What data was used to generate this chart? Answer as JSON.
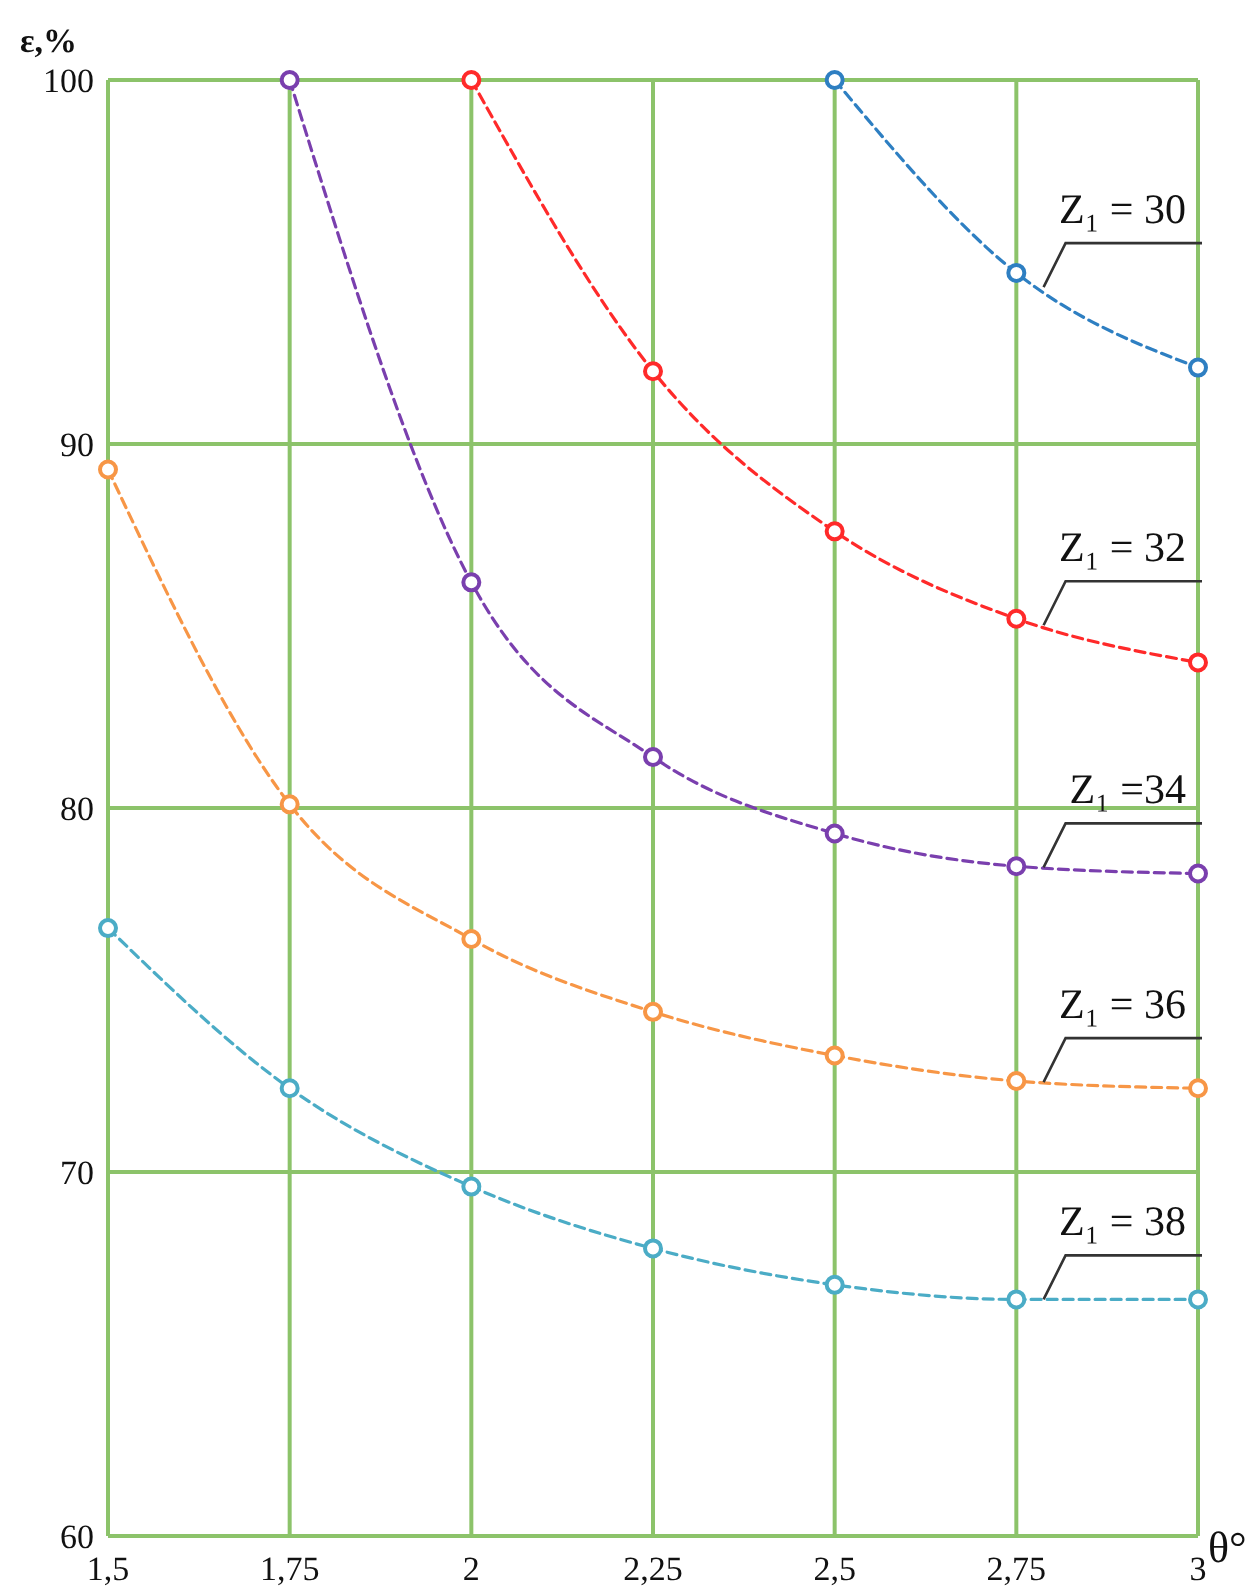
{
  "chart_data": {
    "type": "line",
    "xlabel": "θ°",
    "ylabel": "ε,%",
    "xlim": [
      1.5,
      3
    ],
    "ylim": [
      60,
      100
    ],
    "xticks": [
      {
        "value": 1.5,
        "label": "1,5"
      },
      {
        "value": 1.75,
        "label": "1,75"
      },
      2,
      {
        "value": 2.25,
        "label": "2,25"
      },
      {
        "value": 2.5,
        "label": "2,5"
      },
      {
        "value": 2.75,
        "label": "2,75"
      },
      3
    ],
    "yticks": [
      60,
      70,
      80,
      90,
      100
    ],
    "grid": true,
    "marker": "circle",
    "line_style": "dashed",
    "series": [
      {
        "name": "Z₁ = 30",
        "color": "#2e7fc2",
        "x": [
          2.5,
          2.75,
          3
        ],
        "values": [
          100,
          94.7,
          92.1
        ]
      },
      {
        "name": "Z₁ = 32",
        "color": "#ff2a2a",
        "x": [
          2,
          2.25,
          2.5,
          2.75,
          3
        ],
        "values": [
          100,
          92.0,
          87.6,
          85.2,
          84.0
        ]
      },
      {
        "name": "Z₁ =34",
        "color": "#7a3fae",
        "x": [
          1.75,
          2,
          2.25,
          2.5,
          2.75,
          3
        ],
        "values": [
          100,
          86.2,
          81.4,
          79.3,
          78.4,
          78.2
        ]
      },
      {
        "name": "Z₁ = 36",
        "color": "#f79646",
        "x": [
          1.5,
          1.75,
          2,
          2.25,
          2.5,
          2.75,
          3
        ],
        "values": [
          89.3,
          80.1,
          76.4,
          74.4,
          73.2,
          72.5,
          72.3
        ]
      },
      {
        "name": "Z₁ = 38",
        "color": "#4bacc6",
        "x": [
          1.5,
          1.75,
          2,
          2.25,
          2.5,
          2.75,
          3
        ],
        "values": [
          76.7,
          72.3,
          69.6,
          67.9,
          66.9,
          66.5,
          66.5
        ]
      }
    ]
  }
}
